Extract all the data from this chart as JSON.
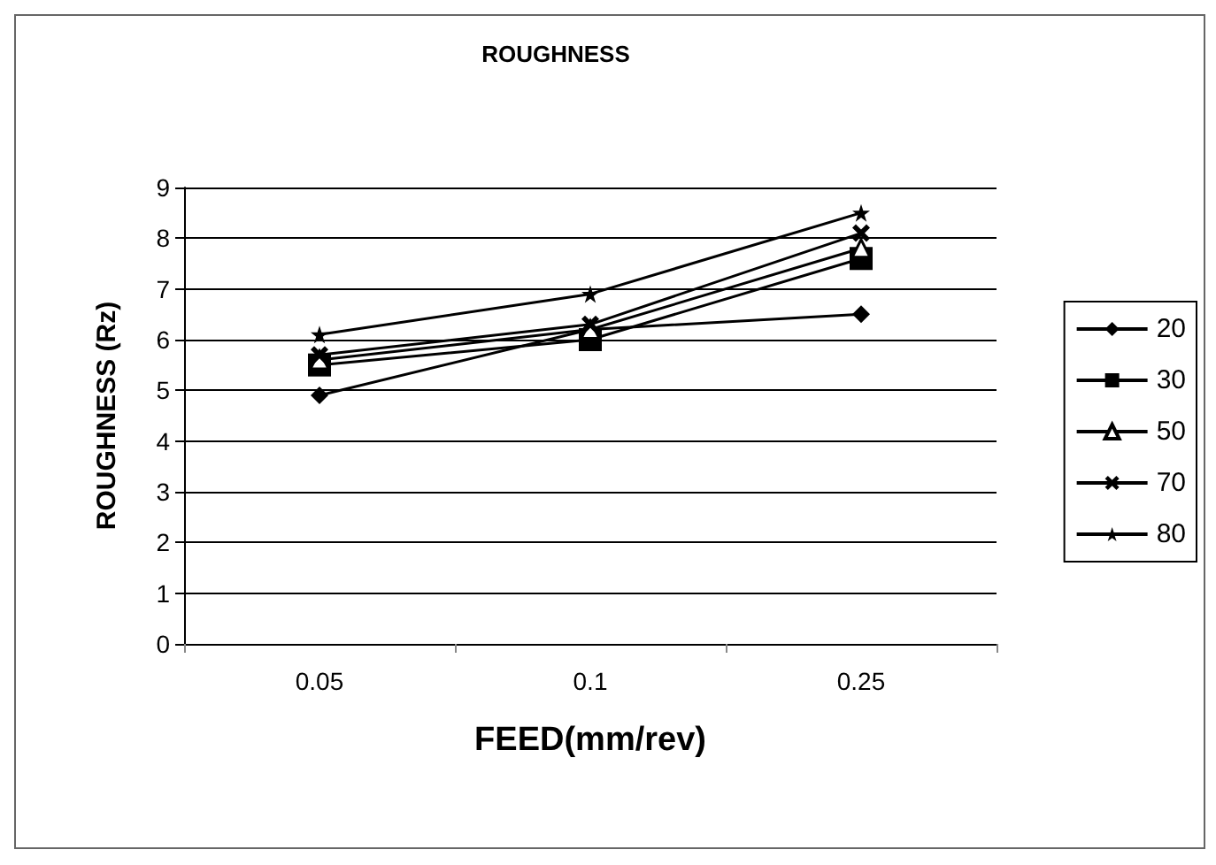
{
  "chart_data": {
    "type": "line",
    "title": "ROUGHNESS",
    "xlabel": "FEED(mm/rev)",
    "ylabel": "ROUGHNESS (Rz)",
    "categories": [
      "0.05",
      "0.1",
      "0.25"
    ],
    "series": [
      {
        "name": "20",
        "color": "#000000",
        "marker": "diamond",
        "values": [
          4.9,
          6.2,
          6.5
        ]
      },
      {
        "name": "30",
        "color": "#000000",
        "marker": "square",
        "values": [
          5.5,
          6.0,
          7.6
        ]
      },
      {
        "name": "50",
        "color": "#000000",
        "marker": "triangle",
        "values": [
          5.6,
          6.2,
          7.8
        ]
      },
      {
        "name": "70",
        "color": "#000000",
        "marker": "cross",
        "values": [
          5.7,
          6.3,
          8.1
        ]
      },
      {
        "name": "80",
        "color": "#000000",
        "marker": "star",
        "values": [
          6.1,
          6.9,
          8.5
        ]
      }
    ],
    "ylim": [
      0,
      9
    ],
    "yticks": [
      0,
      1,
      2,
      3,
      4,
      5,
      6,
      7,
      8,
      9
    ],
    "grid": "y",
    "legend": "right",
    "line_style": "solid"
  }
}
